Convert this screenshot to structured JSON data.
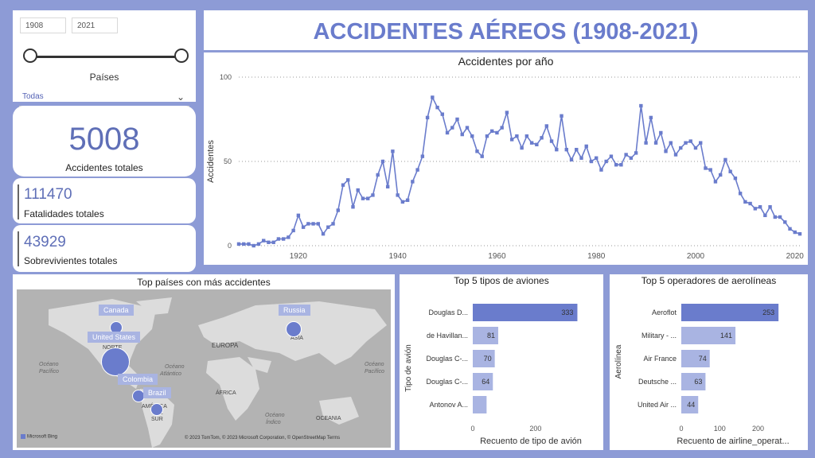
{
  "filters": {
    "year_start": "1908",
    "year_end": "2021",
    "countries_label": "Países",
    "countries_value": "Todas"
  },
  "kpis": {
    "accidents_value": "5008",
    "accidents_label": "Accidentes totales",
    "fatalities_value": "111470",
    "fatalities_label": "Fatalidades totales",
    "survivors_value": "43929",
    "survivors_label": "Sobrevivientes totales"
  },
  "title": "ACCIDENTES AÉREOS (1908-2021)",
  "chart_data": [
    {
      "type": "line",
      "title": "Accidentes por año",
      "ylabel": "Accidentes",
      "xlabel": "",
      "xlim": [
        1908,
        2021
      ],
      "ylim": [
        0,
        100
      ],
      "xticks": [
        1920,
        1940,
        1960,
        1980,
        2000,
        2020
      ],
      "yticks": [
        0,
        50,
        100
      ],
      "grid": "horizontal-dotted",
      "color": "#6a7ccc",
      "series": [
        {
          "x": [
            1908,
            1909,
            1910,
            1911,
            1912,
            1913,
            1914,
            1915,
            1916,
            1917,
            1918,
            1919,
            1920,
            1921,
            1922,
            1923,
            1924,
            1925,
            1926,
            1927,
            1928,
            1929,
            1930,
            1931,
            1932,
            1933,
            1934,
            1935,
            1936,
            1937,
            1938,
            1939,
            1940,
            1941,
            1942,
            1943,
            1944,
            1945,
            1946,
            1947,
            1948,
            1949,
            1950,
            1951,
            1952,
            1953,
            1954,
            1955,
            1956,
            1957,
            1958,
            1959,
            1960,
            1961,
            1962,
            1963,
            1964,
            1965,
            1966,
            1967,
            1968,
            1969,
            1970,
            1971,
            1972,
            1973,
            1974,
            1975,
            1976,
            1977,
            1978,
            1979,
            1980,
            1981,
            1982,
            1983,
            1984,
            1985,
            1986,
            1987,
            1988,
            1989,
            1990,
            1991,
            1992,
            1993,
            1994,
            1995,
            1996,
            1997,
            1998,
            1999,
            2000,
            2001,
            2002,
            2003,
            2004,
            2005,
            2006,
            2007,
            2008,
            2009,
            2010,
            2011,
            2012,
            2013,
            2014,
            2015,
            2016,
            2017,
            2018,
            2019,
            2020,
            2021
          ],
          "values": [
            1,
            1,
            1,
            0,
            1,
            3,
            2,
            2,
            4,
            4,
            5,
            9,
            18,
            11,
            13,
            13,
            13,
            7,
            11,
            13,
            21,
            36,
            39,
            23,
            33,
            28,
            28,
            30,
            42,
            50,
            35,
            56,
            30,
            26,
            27,
            38,
            45,
            53,
            76,
            88,
            82,
            78,
            67,
            70,
            75,
            66,
            70,
            65,
            56,
            53,
            65,
            68,
            67,
            70,
            79,
            63,
            65,
            58,
            65,
            61,
            60,
            64,
            71,
            62,
            57,
            77,
            57,
            51,
            57,
            52,
            59,
            50,
            52,
            45,
            50,
            53,
            48,
            48,
            54,
            52,
            55,
            83,
            61,
            76,
            61,
            67,
            56,
            61,
            54,
            58,
            61,
            62,
            58,
            61,
            46,
            45,
            38,
            42,
            51,
            44,
            40,
            31,
            26,
            25,
            22,
            23,
            18,
            23,
            17,
            17,
            14,
            10,
            8,
            7
          ]
        }
      ]
    },
    {
      "type": "bar",
      "orientation": "horizontal",
      "title": "Top 5 tipos de aviones",
      "ylabel": "Tipo de avión",
      "xlabel": "Recuento de tipo de avión",
      "categories": [
        "Douglas D...",
        "de Havillan...",
        "Douglas C-...",
        "Douglas C-...",
        "Antonov A..."
      ],
      "values": [
        333,
        81,
        70,
        64,
        44
      ],
      "data_labels": [
        "333",
        "81",
        "70",
        "64",
        ""
      ],
      "xticks": [
        0,
        200
      ],
      "xlim": [
        0,
        380
      ],
      "colors": [
        "#6a7ccc",
        "#a9b4e2",
        "#a9b4e2",
        "#a9b4e2",
        "#a9b4e2"
      ]
    },
    {
      "type": "bar",
      "orientation": "horizontal",
      "title": "Top 5 operadores de aerolíneas",
      "ylabel": "Aerolínea",
      "xlabel": "Recuento de airline_operat...",
      "categories": [
        "Aeroflot",
        "Military - ...",
        "Air France",
        "Deutsche ...",
        "United Air ..."
      ],
      "values": [
        253,
        141,
        74,
        63,
        44
      ],
      "data_labels": [
        "253",
        "141",
        "74",
        "63",
        "44"
      ],
      "xticks": [
        0,
        100,
        200
      ],
      "xlim": [
        0,
        290
      ],
      "colors": [
        "#6a7ccc",
        "#a9b4e2",
        "#a9b4e2",
        "#a9b4e2",
        "#a9b4e2"
      ]
    }
  ],
  "map": {
    "title": "Top países con más accidentes",
    "countries": [
      {
        "name": "Canada"
      },
      {
        "name": "United States"
      },
      {
        "name": "Colombia"
      },
      {
        "name": "Brazil"
      },
      {
        "name": "Russia"
      }
    ],
    "region_labels": [
      "NORTE",
      "EUROPA",
      "ASIA",
      "ÁFRICA",
      "AMÉRICA",
      "DEL",
      "SUR",
      "OCEANIA"
    ],
    "ocean_labels": [
      "Océano",
      "Pacífico",
      "Océano",
      "Atlántico",
      "Océano",
      "Índico",
      "Océano",
      "Pacífico"
    ],
    "logo_text": "Microsoft Bing",
    "attribution": "© 2023 TomTom, © 2023 Microsoft Corporation, © OpenStreetMap  Terms"
  }
}
